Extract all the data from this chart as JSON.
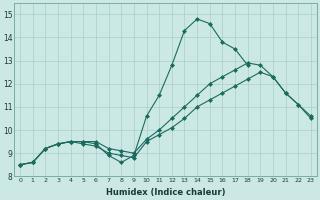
{
  "xlabel": "Humidex (Indice chaleur)",
  "bg_color": "#cce8e4",
  "grid_color": "#aacfca",
  "line_color": "#1a6b5e",
  "xlim": [
    -0.5,
    23.5
  ],
  "ylim": [
    8.0,
    15.5
  ],
  "yticks": [
    8,
    9,
    10,
    11,
    12,
    13,
    14,
    15
  ],
  "xticks": [
    0,
    1,
    2,
    3,
    4,
    5,
    6,
    7,
    8,
    9,
    10,
    11,
    12,
    13,
    14,
    15,
    16,
    17,
    18,
    19,
    20,
    21,
    22,
    23
  ],
  "line1_x": [
    0,
    1,
    2,
    3,
    4,
    5,
    6,
    7,
    8,
    9,
    10,
    11,
    12,
    13,
    14,
    15,
    16,
    17,
    18,
    19,
    20,
    21,
    22,
    23
  ],
  "line1_y": [
    8.5,
    8.6,
    9.2,
    9.4,
    9.5,
    9.5,
    9.4,
    8.9,
    8.6,
    8.9,
    10.6,
    11.5,
    12.8,
    14.3,
    14.8,
    14.6,
    13.8,
    13.5,
    12.8,
    null,
    null,
    null,
    null,
    null
  ],
  "line2_x": [
    0,
    1,
    2,
    3,
    4,
    5,
    6,
    7,
    8,
    9,
    10,
    11,
    12,
    13,
    14,
    15,
    16,
    17,
    18,
    19,
    20,
    21,
    22,
    23
  ],
  "line2_y": [
    8.5,
    8.6,
    9.2,
    9.4,
    9.5,
    9.5,
    9.5,
    9.2,
    9.1,
    9.0,
    9.6,
    10.0,
    10.5,
    11.0,
    11.5,
    12.0,
    12.3,
    12.6,
    12.9,
    12.8,
    12.3,
    11.6,
    11.1,
    10.5
  ],
  "line3_x": [
    0,
    1,
    2,
    3,
    4,
    5,
    6,
    7,
    8,
    9,
    10,
    11,
    12,
    13,
    14,
    15,
    16,
    17,
    18,
    19,
    20,
    21,
    22,
    23
  ],
  "line3_y": [
    8.5,
    8.6,
    9.2,
    9.4,
    9.5,
    9.4,
    9.3,
    9.0,
    8.9,
    8.8,
    9.5,
    9.8,
    10.1,
    10.5,
    11.0,
    11.3,
    11.6,
    11.9,
    12.2,
    12.5,
    12.3,
    11.6,
    11.1,
    10.6
  ]
}
